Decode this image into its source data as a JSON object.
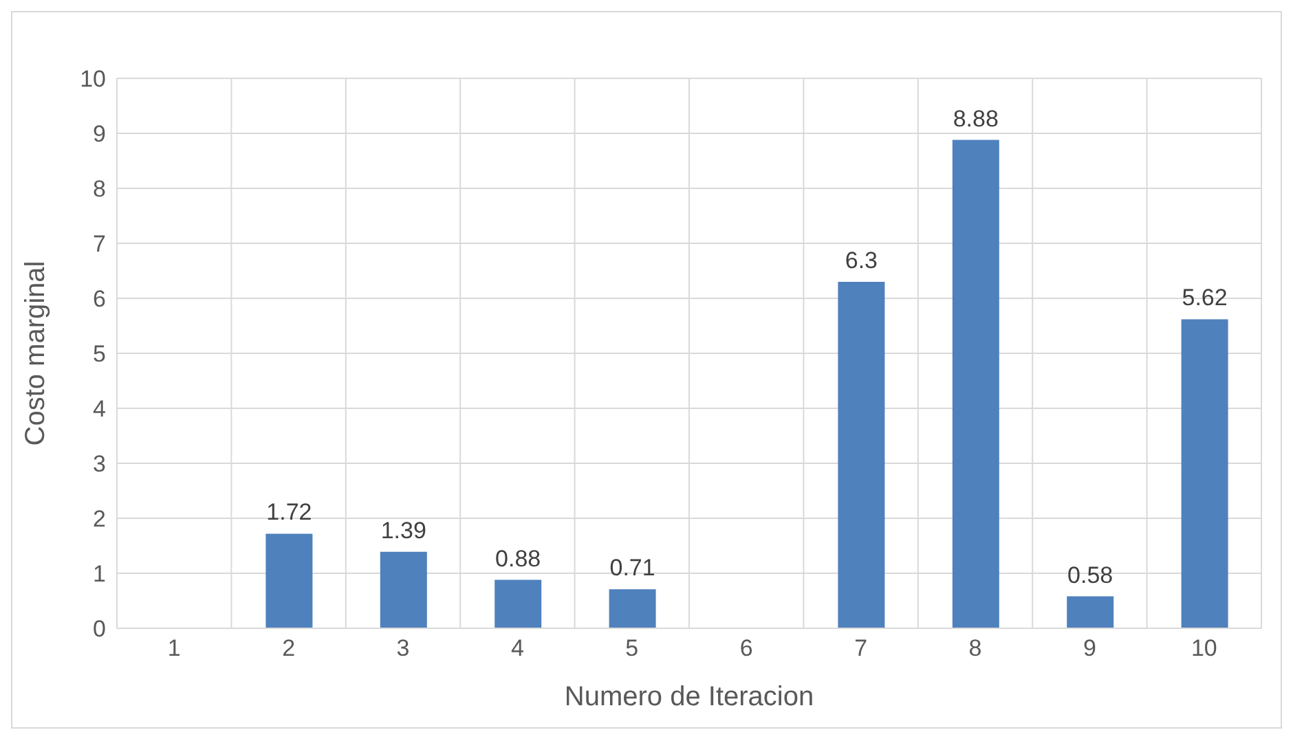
{
  "chart_data": {
    "type": "bar",
    "xlabel": "Numero de Iteracion",
    "ylabel": "Costo marginal",
    "categories": [
      "1",
      "2",
      "3",
      "4",
      "5",
      "6",
      "7",
      "8",
      "9",
      "10"
    ],
    "values": [
      null,
      1.72,
      1.39,
      0.88,
      0.71,
      null,
      6.3,
      8.88,
      0.58,
      5.62
    ],
    "color": "#4f81bd",
    "ylim": [
      0,
      10
    ],
    "yticks": [
      0,
      1,
      2,
      3,
      4,
      5,
      6,
      7,
      8,
      9,
      10
    ],
    "grid": true,
    "data_labels": true
  }
}
